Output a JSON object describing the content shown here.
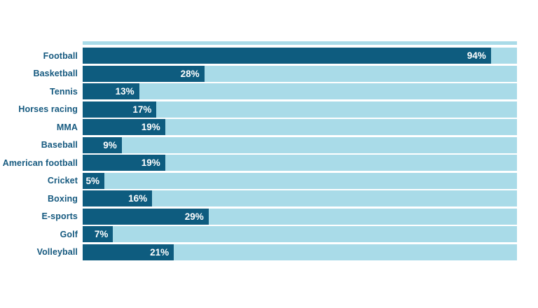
{
  "chart_data": {
    "type": "bar",
    "orientation": "horizontal",
    "title": "",
    "xlabel": "",
    "ylabel": "",
    "xlim": [
      0,
      100
    ],
    "grid": false,
    "legend": false,
    "categories": [
      "Football",
      "Basketball",
      "Tennis",
      "Horses racing",
      "MMA",
      "Baseball",
      "American football",
      "Cricket",
      "Boxing",
      "E-sports",
      "Golf",
      "Volleyball"
    ],
    "values": [
      94,
      28,
      13,
      17,
      19,
      9,
      19,
      5,
      16,
      29,
      7,
      21
    ],
    "value_labels": [
      "94%",
      "28%",
      "13%",
      "17%",
      "19%",
      "9%",
      "19%",
      "5%",
      "16%",
      "29%",
      "7%",
      "21%"
    ],
    "colors": {
      "bar": "#0e5c7f",
      "track": "#a9dbe8",
      "category_label": "#15597f",
      "value_label": "#ffffff",
      "background": "#ffffff"
    }
  }
}
